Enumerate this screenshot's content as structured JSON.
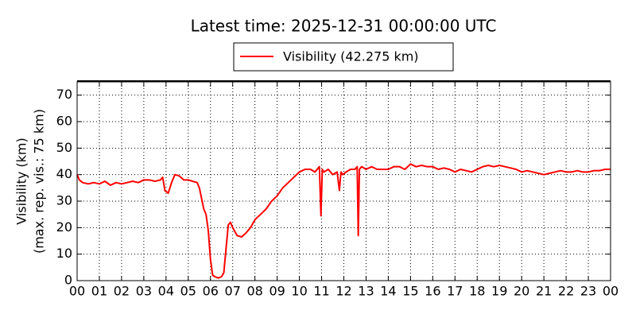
{
  "chart_data": {
    "type": "line",
    "title": "Latest time: 2025-12-31 00:00:00 UTC",
    "ylabel": [
      "Visibility (km)",
      "(max. rep. vis.: 75 km)"
    ],
    "x": [
      0,
      0.1,
      0.25,
      0.5,
      0.75,
      1,
      1.25,
      1.5,
      1.75,
      2,
      2.25,
      2.5,
      2.75,
      3,
      3.25,
      3.5,
      3.75,
      3.85,
      3.95,
      4.1,
      4.25,
      4.4,
      4.6,
      4.8,
      5,
      5.2,
      5.4,
      5.5,
      5.6,
      5.7,
      5.8,
      5.9,
      6.0,
      6.1,
      6.2,
      6.35,
      6.5,
      6.6,
      6.7,
      6.8,
      6.9,
      7.0,
      7.2,
      7.4,
      7.6,
      7.8,
      8,
      8.25,
      8.5,
      8.75,
      9,
      9.25,
      9.5,
      9.75,
      10,
      10.25,
      10.5,
      10.7,
      10.9,
      10.97,
      11.03,
      11.1,
      11.3,
      11.5,
      11.7,
      11.8,
      11.87,
      11.95,
      12.1,
      12.3,
      12.5,
      12.6,
      12.65,
      12.7,
      12.8,
      13,
      13.25,
      13.5,
      13.75,
      14,
      14.25,
      14.5,
      14.75,
      15,
      15.25,
      15.5,
      15.75,
      16,
      16.25,
      16.5,
      16.75,
      17,
      17.25,
      17.5,
      17.75,
      18,
      18.25,
      18.5,
      18.75,
      19,
      19.25,
      19.5,
      19.75,
      20,
      20.25,
      20.5,
      20.75,
      21,
      21.25,
      21.5,
      21.75,
      22,
      22.25,
      22.5,
      22.75,
      23,
      23.25,
      23.5,
      23.75,
      24
    ],
    "series": [
      {
        "name": "Visibility (42.275 km)",
        "color": "#ff0000",
        "values": [
          40,
          38,
          37,
          36.5,
          37,
          36.5,
          37.5,
          36,
          37,
          36.5,
          37,
          37.5,
          37,
          38,
          38,
          37.5,
          38,
          39,
          34,
          33,
          37,
          40,
          39.5,
          38,
          38,
          37.5,
          37,
          35,
          31,
          27,
          25,
          19,
          8,
          2,
          1.5,
          1,
          1.5,
          3,
          12,
          21,
          22,
          20,
          17,
          16.5,
          18,
          20,
          23,
          25,
          27,
          30,
          32,
          35,
          37,
          39,
          41,
          42,
          42,
          41,
          43,
          24.5,
          42,
          41,
          42,
          40,
          41,
          34,
          41,
          40,
          41,
          42,
          42,
          43,
          17,
          42,
          43,
          42,
          43,
          42,
          42,
          42,
          43,
          43,
          42,
          44,
          43,
          43.5,
          43,
          43,
          42,
          42.5,
          42,
          41,
          42,
          41.5,
          41,
          42,
          43,
          43.5,
          43,
          43.5,
          43,
          42.5,
          42,
          41,
          41.5,
          41,
          40.5,
          40,
          40.5,
          41,
          41.5,
          41,
          41,
          41.5,
          41,
          41,
          41.5,
          41.5,
          42,
          42
        ]
      }
    ],
    "xlim": [
      0,
      24
    ],
    "ylim": [
      0,
      75
    ],
    "xticks": [
      {
        "value": 0,
        "label": "00"
      },
      {
        "value": 1,
        "label": "01"
      },
      {
        "value": 2,
        "label": "02"
      },
      {
        "value": 3,
        "label": "03"
      },
      {
        "value": 4,
        "label": "04"
      },
      {
        "value": 5,
        "label": "05"
      },
      {
        "value": 6,
        "label": "06"
      },
      {
        "value": 7,
        "label": "07"
      },
      {
        "value": 8,
        "label": "08"
      },
      {
        "value": 9,
        "label": "09"
      },
      {
        "value": 10,
        "label": "10"
      },
      {
        "value": 11,
        "label": "11"
      },
      {
        "value": 12,
        "label": "12"
      },
      {
        "value": 13,
        "label": "13"
      },
      {
        "value": 14,
        "label": "14"
      },
      {
        "value": 15,
        "label": "15"
      },
      {
        "value": 16,
        "label": "16"
      },
      {
        "value": 17,
        "label": "17"
      },
      {
        "value": 18,
        "label": "18"
      },
      {
        "value": 19,
        "label": "19"
      },
      {
        "value": 20,
        "label": "20"
      },
      {
        "value": 21,
        "label": "21"
      },
      {
        "value": 22,
        "label": "22"
      },
      {
        "value": 23,
        "label": "23"
      },
      {
        "value": 24,
        "label": "00"
      }
    ],
    "yticks": [
      0,
      10,
      20,
      30,
      40,
      50,
      60,
      70
    ],
    "grid": true,
    "legend": "top"
  }
}
